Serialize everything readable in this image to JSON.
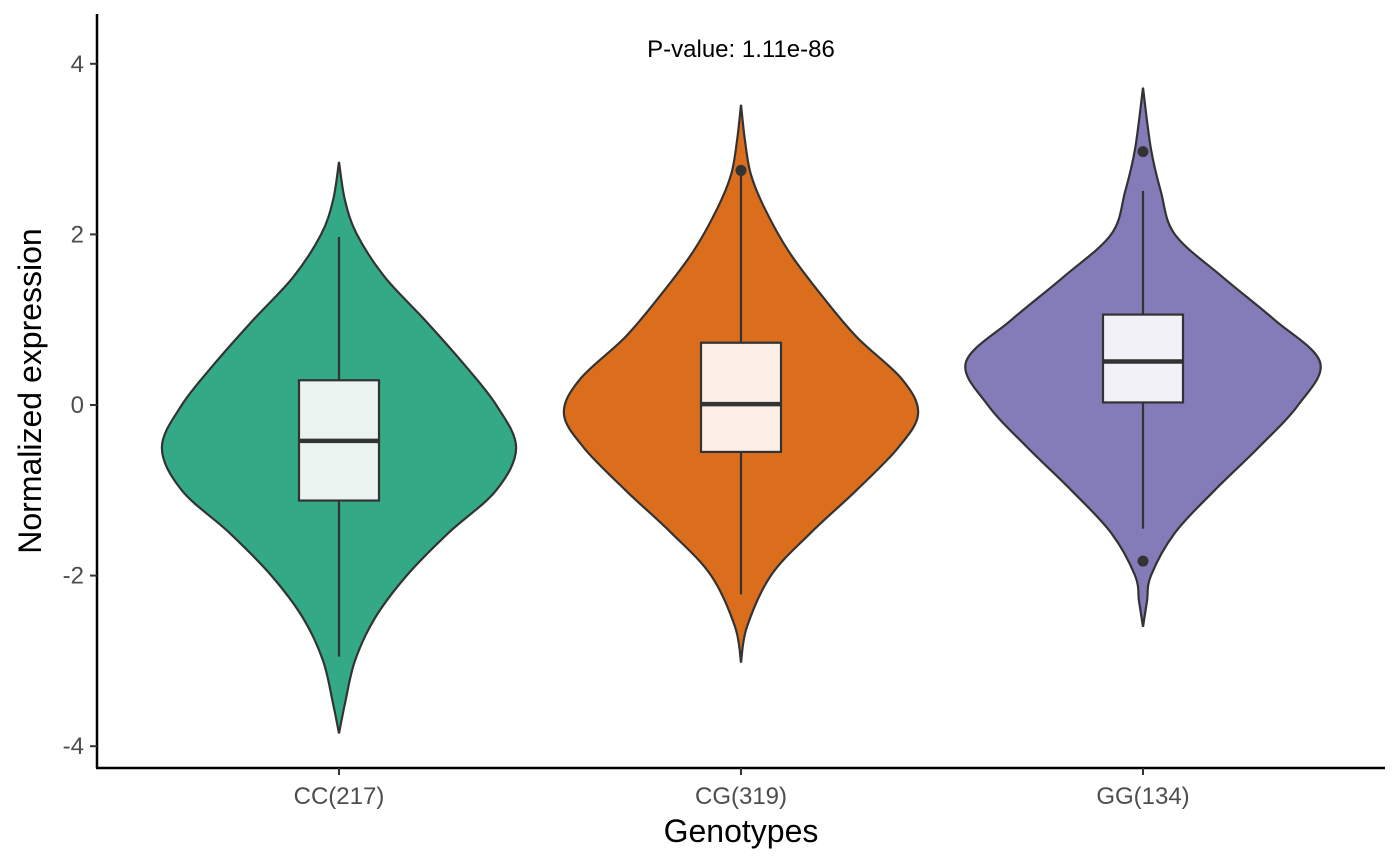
{
  "chart_data": {
    "type": "violin",
    "title": "",
    "annotation": "P-value: 1.11e-86",
    "xlabel": "Genotypes",
    "ylabel": "Normalized expression",
    "ylim": [
      -4.2,
      4.6
    ],
    "yticks": [
      -4,
      -2,
      0,
      2,
      4
    ],
    "categories": [
      "CC(217)",
      "CG(319)",
      "GG(134)"
    ],
    "colors": [
      "#33a985",
      "#db6e1c",
      "#847cb8"
    ],
    "box_fill": [
      "#ebf4f1",
      "#fbefe7",
      "#f2f1f7"
    ],
    "violins": [
      {
        "y": [
          -3.85,
          -3.5,
          -3.0,
          -2.5,
          -2.0,
          -1.5,
          -1.0,
          -0.5,
          0.0,
          0.5,
          1.0,
          1.5,
          2.0,
          2.4,
          2.85
        ],
        "width": [
          0.0,
          0.03,
          0.08,
          0.18,
          0.34,
          0.55,
          0.79,
          0.89,
          0.79,
          0.62,
          0.43,
          0.23,
          0.09,
          0.03,
          0.0
        ],
        "box": {
          "q1": -1.12,
          "median": -0.42,
          "q3": 0.29,
          "whisker_low": -2.95,
          "whisker_high": 1.97
        },
        "outliers": []
      },
      {
        "y": [
          -3.02,
          -2.6,
          -2.0,
          -1.5,
          -1.0,
          -0.5,
          -0.1,
          0.3,
          0.8,
          1.3,
          1.8,
          2.3,
          2.7,
          3.1,
          3.52
        ],
        "width": [
          0.0,
          0.03,
          0.15,
          0.35,
          0.58,
          0.79,
          0.89,
          0.81,
          0.58,
          0.4,
          0.24,
          0.12,
          0.05,
          0.02,
          0.0
        ],
        "box": {
          "q1": -0.55,
          "median": 0.01,
          "q3": 0.73,
          "whisker_low": -2.22,
          "whisker_high": 2.73
        },
        "outliers": [
          2.75
        ]
      },
      {
        "y": [
          -2.6,
          -2.3,
          -2.0,
          -1.5,
          -1.0,
          -0.5,
          0.0,
          0.5,
          1.0,
          1.5,
          2.0,
          2.5,
          3.0,
          3.72
        ],
        "width": [
          0.0,
          0.02,
          0.04,
          0.16,
          0.36,
          0.58,
          0.78,
          0.89,
          0.66,
          0.4,
          0.16,
          0.09,
          0.04,
          0.0
        ],
        "box": {
          "q1": 0.03,
          "median": 0.51,
          "q3": 1.06,
          "whisker_low": -1.45,
          "whisker_high": 2.51
        },
        "outliers": [
          2.97,
          -1.83
        ]
      }
    ]
  }
}
